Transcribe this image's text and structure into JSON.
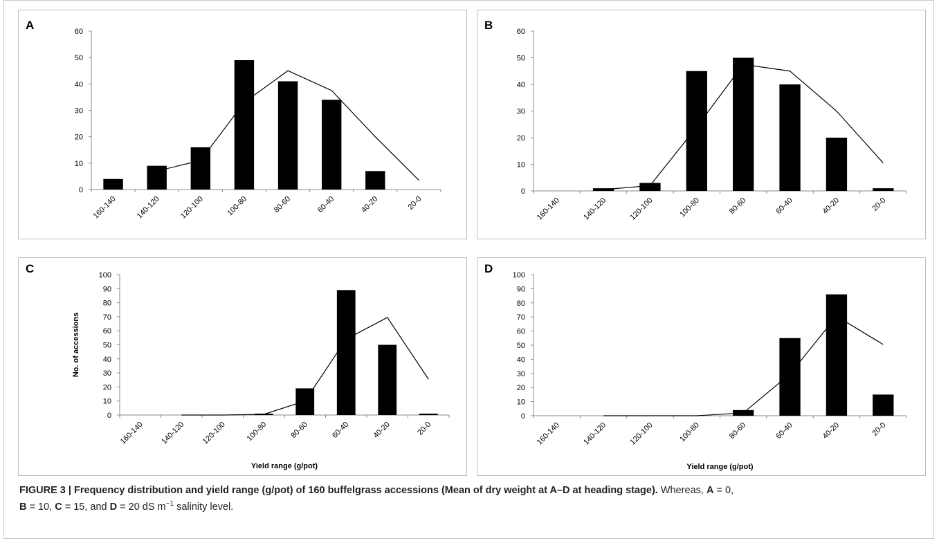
{
  "figure_label": "FIGURE 3 |",
  "caption": {
    "bold": "Frequency distribution and yield range (g/pot) of 160 buffelgrass accessions (Mean of dry weight at A–D at heading stage).",
    "p1": " Whereas, ",
    "A": "A",
    "eq1": " = 0,",
    "B": "B",
    "eq2": " = 10, ",
    "C": "C",
    "eq3": " = 15, and ",
    "D": "D",
    "eq4": " = 20 dS m",
    "sup": "−1",
    "eq5": " salinity level."
  },
  "chart_data": [
    {
      "panel": "A",
      "type": "bar",
      "categories": [
        "160-140",
        "140-120",
        "120-100",
        "100-80",
        "80-60",
        "60-40",
        "40-20",
        "20-0"
      ],
      "series": [
        {
          "values": [
            4,
            9,
            16,
            49,
            41,
            34,
            7,
            0
          ]
        }
      ],
      "trend_line": [
        null,
        7,
        11,
        33,
        45,
        37.5,
        20,
        3.5
      ],
      "ylim": [
        0,
        60
      ],
      "yticks": [
        0,
        10,
        20,
        30,
        40,
        50,
        60
      ],
      "xlabel": "",
      "ylabel": "",
      "colors": {
        "bar": "#000000",
        "line": "#000000"
      }
    },
    {
      "panel": "B",
      "type": "bar",
      "categories": [
        "160-140",
        "140-120",
        "120-100",
        "100-80",
        "80-60",
        "60-40",
        "40-20",
        "20-0"
      ],
      "series": [
        {
          "values": [
            0,
            1,
            3,
            45,
            50,
            40,
            20,
            1
          ]
        }
      ],
      "trend_line": [
        null,
        0.5,
        2,
        24,
        47.5,
        45,
        30,
        10.5
      ],
      "ylim": [
        0,
        60
      ],
      "yticks": [
        0,
        10,
        20,
        30,
        40,
        50,
        60
      ],
      "xlabel": "",
      "ylabel": "",
      "colors": {
        "bar": "#000000",
        "line": "#000000"
      }
    },
    {
      "panel": "C",
      "type": "bar",
      "categories": [
        "160-140",
        "140-120",
        "120-100",
        "100-80",
        "80-60",
        "60-40",
        "40-20",
        "20-0"
      ],
      "series": [
        {
          "values": [
            0,
            0,
            0,
            1,
            19,
            89,
            50,
            1
          ]
        }
      ],
      "trend_line": [
        null,
        0,
        0,
        0.5,
        10,
        54,
        69.5,
        25.5
      ],
      "ylim": [
        0,
        100
      ],
      "yticks": [
        0,
        10,
        20,
        30,
        40,
        50,
        60,
        70,
        80,
        90,
        100
      ],
      "xlabel": "Yield range (g/pot)",
      "ylabel": "No. of accessions",
      "colors": {
        "bar": "#000000",
        "line": "#000000"
      }
    },
    {
      "panel": "D",
      "type": "bar",
      "categories": [
        "160-140",
        "140-120",
        "120-100",
        "100-80",
        "80-60",
        "60-40",
        "40-20",
        "20-0"
      ],
      "series": [
        {
          "values": [
            0,
            0,
            0,
            0,
            4,
            55,
            86,
            15
          ]
        }
      ],
      "trend_line": [
        null,
        0,
        0,
        0,
        2,
        29.5,
        70.5,
        50.5
      ],
      "ylim": [
        0,
        100
      ],
      "yticks": [
        0,
        10,
        20,
        30,
        40,
        50,
        60,
        70,
        80,
        90,
        100
      ],
      "xlabel": "Yield range (g/pot)",
      "ylabel": "",
      "colors": {
        "bar": "#000000",
        "line": "#000000"
      }
    }
  ]
}
